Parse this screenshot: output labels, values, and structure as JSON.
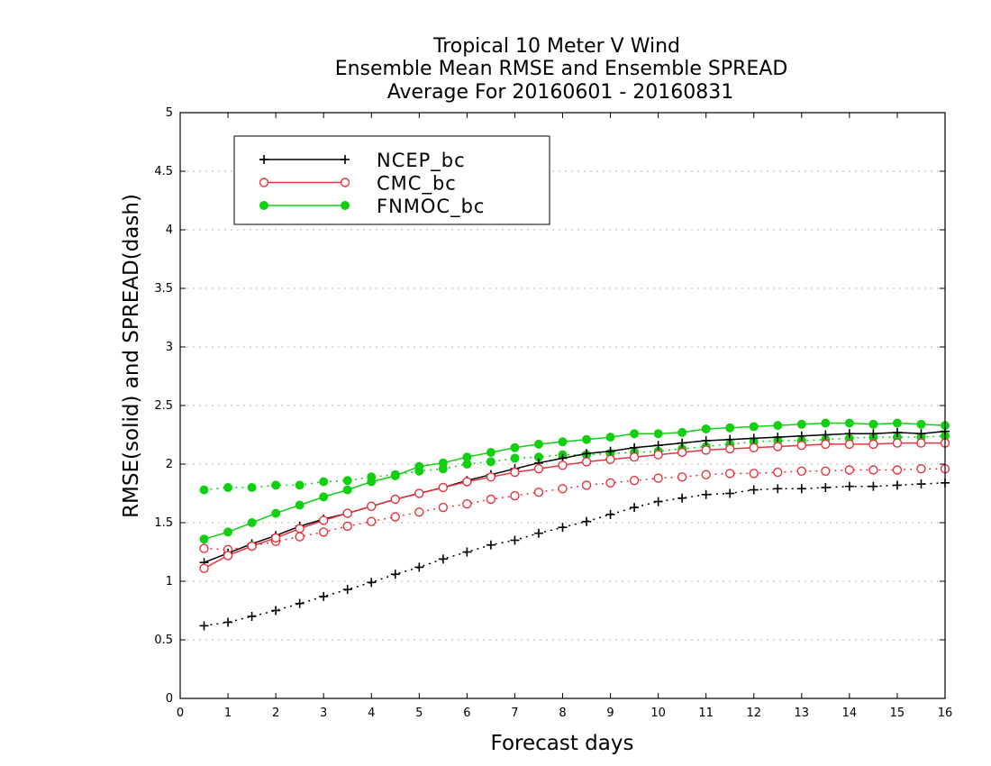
{
  "chart_data": {
    "type": "line",
    "title": [
      "Tropical 10 Meter V Wind",
      "Ensemble Mean RMSE and Ensemble SPREAD",
      "Average For 20160601 - 20160831"
    ],
    "xlabel": "Forecast days",
    "ylabel": "RMSE(solid) and SPREAD(dash)",
    "xlim": [
      0,
      16
    ],
    "ylim": [
      0,
      5
    ],
    "xticks": [
      "0",
      "1",
      "2",
      "3",
      "4",
      "5",
      "6",
      "7",
      "8",
      "9",
      "10",
      "11",
      "12",
      "13",
      "14",
      "15",
      "16"
    ],
    "yticks": [
      "0",
      "0.5",
      "1",
      "1.5",
      "2",
      "2.5",
      "3",
      "3.5",
      "4",
      "4.5",
      "5"
    ],
    "grid": "y-dotted",
    "legend_position": "top-left",
    "x": [
      0.5,
      1,
      1.5,
      2,
      2.5,
      3,
      3.5,
      4,
      4.5,
      5,
      5.5,
      6,
      6.5,
      7,
      7.5,
      8,
      8.5,
      9,
      9.5,
      10,
      10.5,
      11,
      11.5,
      12,
      12.5,
      13,
      13.5,
      14,
      14.5,
      15,
      15.5,
      16
    ],
    "series": [
      {
        "name": "NCEP_bc",
        "color": "#000000",
        "marker": "plus",
        "rmse": [
          1.16,
          1.24,
          1.32,
          1.39,
          1.47,
          1.53,
          1.58,
          1.64,
          1.7,
          1.75,
          1.8,
          1.86,
          1.91,
          1.96,
          2.01,
          2.05,
          2.09,
          2.11,
          2.14,
          2.16,
          2.18,
          2.2,
          2.21,
          2.22,
          2.23,
          2.24,
          2.25,
          2.26,
          2.26,
          2.27,
          2.26,
          2.28
        ],
        "spread": [
          0.62,
          0.65,
          0.7,
          0.75,
          0.81,
          0.87,
          0.93,
          0.99,
          1.06,
          1.12,
          1.19,
          1.25,
          1.31,
          1.35,
          1.41,
          1.46,
          1.51,
          1.57,
          1.63,
          1.68,
          1.71,
          1.74,
          1.75,
          1.78,
          1.79,
          1.79,
          1.8,
          1.81,
          1.81,
          1.82,
          1.83,
          1.84
        ]
      },
      {
        "name": "CMC_bc",
        "color": "#e8323c",
        "marker": "open-circle",
        "rmse": [
          1.11,
          1.22,
          1.3,
          1.37,
          1.45,
          1.52,
          1.58,
          1.64,
          1.7,
          1.75,
          1.8,
          1.85,
          1.89,
          1.93,
          1.96,
          1.99,
          2.02,
          2.04,
          2.06,
          2.08,
          2.1,
          2.12,
          2.13,
          2.14,
          2.15,
          2.16,
          2.17,
          2.17,
          2.17,
          2.18,
          2.18,
          2.18
        ],
        "spread": [
          1.28,
          1.27,
          1.3,
          1.34,
          1.38,
          1.42,
          1.47,
          1.51,
          1.55,
          1.59,
          1.63,
          1.66,
          1.7,
          1.73,
          1.76,
          1.79,
          1.82,
          1.84,
          1.86,
          1.88,
          1.89,
          1.91,
          1.92,
          1.92,
          1.93,
          1.94,
          1.94,
          1.95,
          1.95,
          1.95,
          1.96,
          1.96
        ]
      },
      {
        "name": "FNMOC_bc",
        "color": "#10d010",
        "marker": "filled-circle",
        "rmse": [
          1.36,
          1.42,
          1.5,
          1.58,
          1.65,
          1.72,
          1.78,
          1.85,
          1.9,
          1.98,
          2.01,
          2.06,
          2.1,
          2.14,
          2.17,
          2.19,
          2.21,
          2.23,
          2.26,
          2.26,
          2.27,
          2.3,
          2.31,
          2.32,
          2.33,
          2.34,
          2.35,
          2.35,
          2.34,
          2.35,
          2.34,
          2.33
        ],
        "spread": [
          1.78,
          1.8,
          1.8,
          1.82,
          1.82,
          1.85,
          1.86,
          1.89,
          1.91,
          1.94,
          1.96,
          2.0,
          2.02,
          2.05,
          2.06,
          2.08,
          2.08,
          2.09,
          2.1,
          2.11,
          2.13,
          2.15,
          2.17,
          2.19,
          2.2,
          2.2,
          2.21,
          2.22,
          2.23,
          2.23,
          2.23,
          2.24
        ]
      }
    ]
  }
}
